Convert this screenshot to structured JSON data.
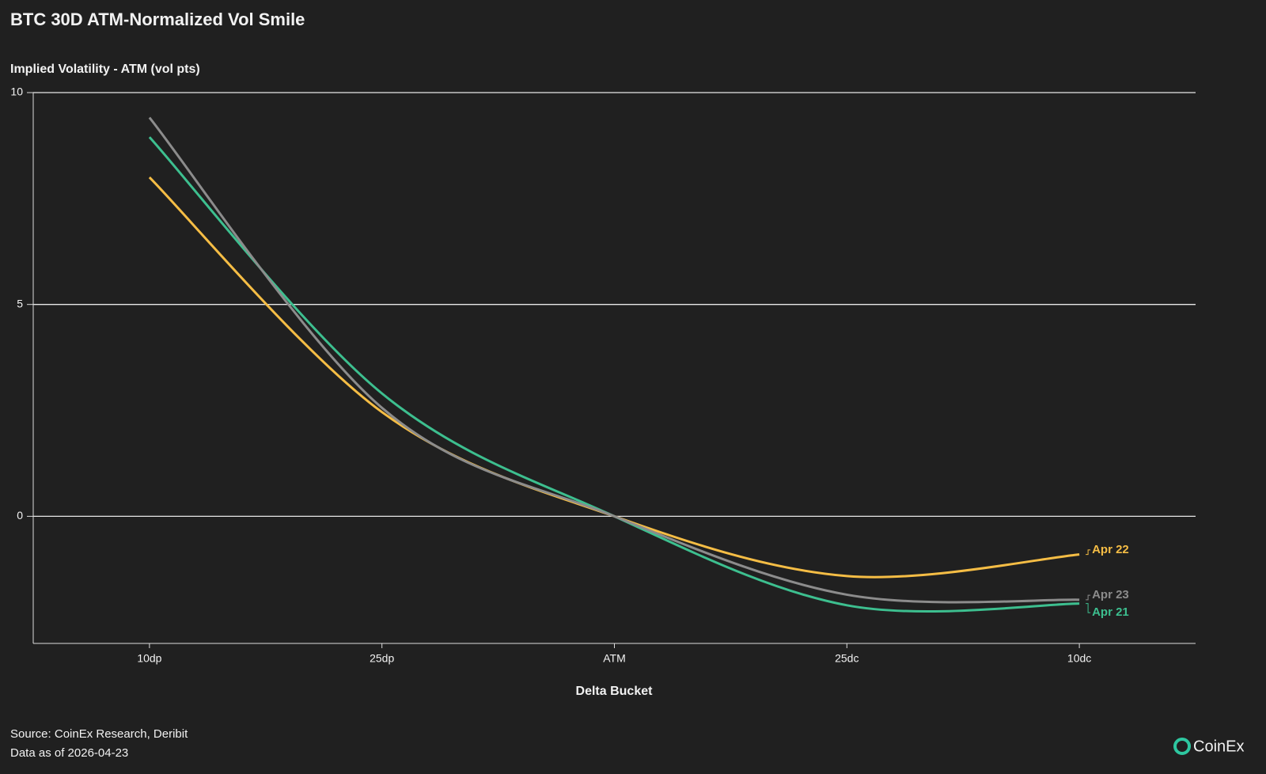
{
  "chart_data": {
    "type": "line",
    "title": "BTC 30D ATM-Normalized Vol Smile",
    "y_label": "Implied Volatility - ATM (vol pts)",
    "x_label": "Delta Bucket",
    "source": "Source: CoinEx Research, Deribit",
    "as_of": "Data as of 2026-04-23",
    "brand": "CoinEx",
    "categories": [
      "10dp",
      "25dp",
      "ATM",
      "25dc",
      "10dc"
    ],
    "series": [
      {
        "name": "Apr 21",
        "color": "#3dbf8f",
        "values": [
          8.95,
          2.9,
          0,
          -2.1,
          -2.06
        ]
      },
      {
        "name": "Apr 22",
        "color": "#f5bd45",
        "values": [
          8.0,
          2.46,
          0,
          -1.41,
          -0.9
        ]
      },
      {
        "name": "Apr 23",
        "color": "#8c8c8c",
        "values": [
          9.41,
          2.56,
          0,
          -1.85,
          -1.97
        ]
      }
    ],
    "ylim": [
      -3,
      10
    ],
    "yticks": [
      0,
      5,
      10
    ],
    "grid": true
  }
}
